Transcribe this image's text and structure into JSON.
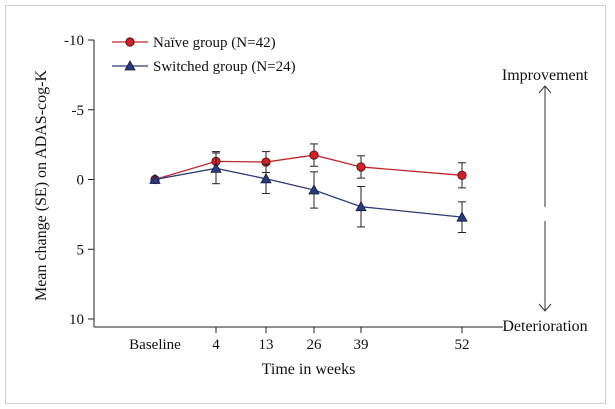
{
  "chart_data": {
    "type": "line",
    "categories": [
      "Baseline",
      "4",
      "13",
      "26",
      "39",
      "52"
    ],
    "xlabel": "Time in weeks",
    "ylabel": "Mean change (SE) on ADAS-cog-K",
    "ylim": [
      -10,
      10
    ],
    "y_inverted": true,
    "yticks": [
      "-10",
      "-5",
      "0",
      "5",
      "10"
    ],
    "grid": false,
    "legend_position": "top-left",
    "series": [
      {
        "name": "Naïve group (N=42)",
        "marker": "circle",
        "line_color": "#c0272d",
        "marker_fill": "#d42127",
        "values": [
          0,
          -1.3,
          -1.25,
          -1.75,
          -0.9,
          -0.3
        ],
        "error": [
          0,
          0.7,
          0.75,
          0.8,
          0.8,
          0.9
        ]
      },
      {
        "name": "Switched group (N=24)",
        "marker": "triangle",
        "line_color": "#2b3a7a",
        "marker_fill": "#2b3a7a",
        "values": [
          0,
          -0.8,
          -0.05,
          0.75,
          1.95,
          2.7
        ],
        "error": [
          0,
          1.1,
          1.05,
          1.3,
          1.45,
          1.1
        ]
      }
    ],
    "annotations": {
      "top": "Improvement",
      "bottom": "Deterioration"
    }
  }
}
